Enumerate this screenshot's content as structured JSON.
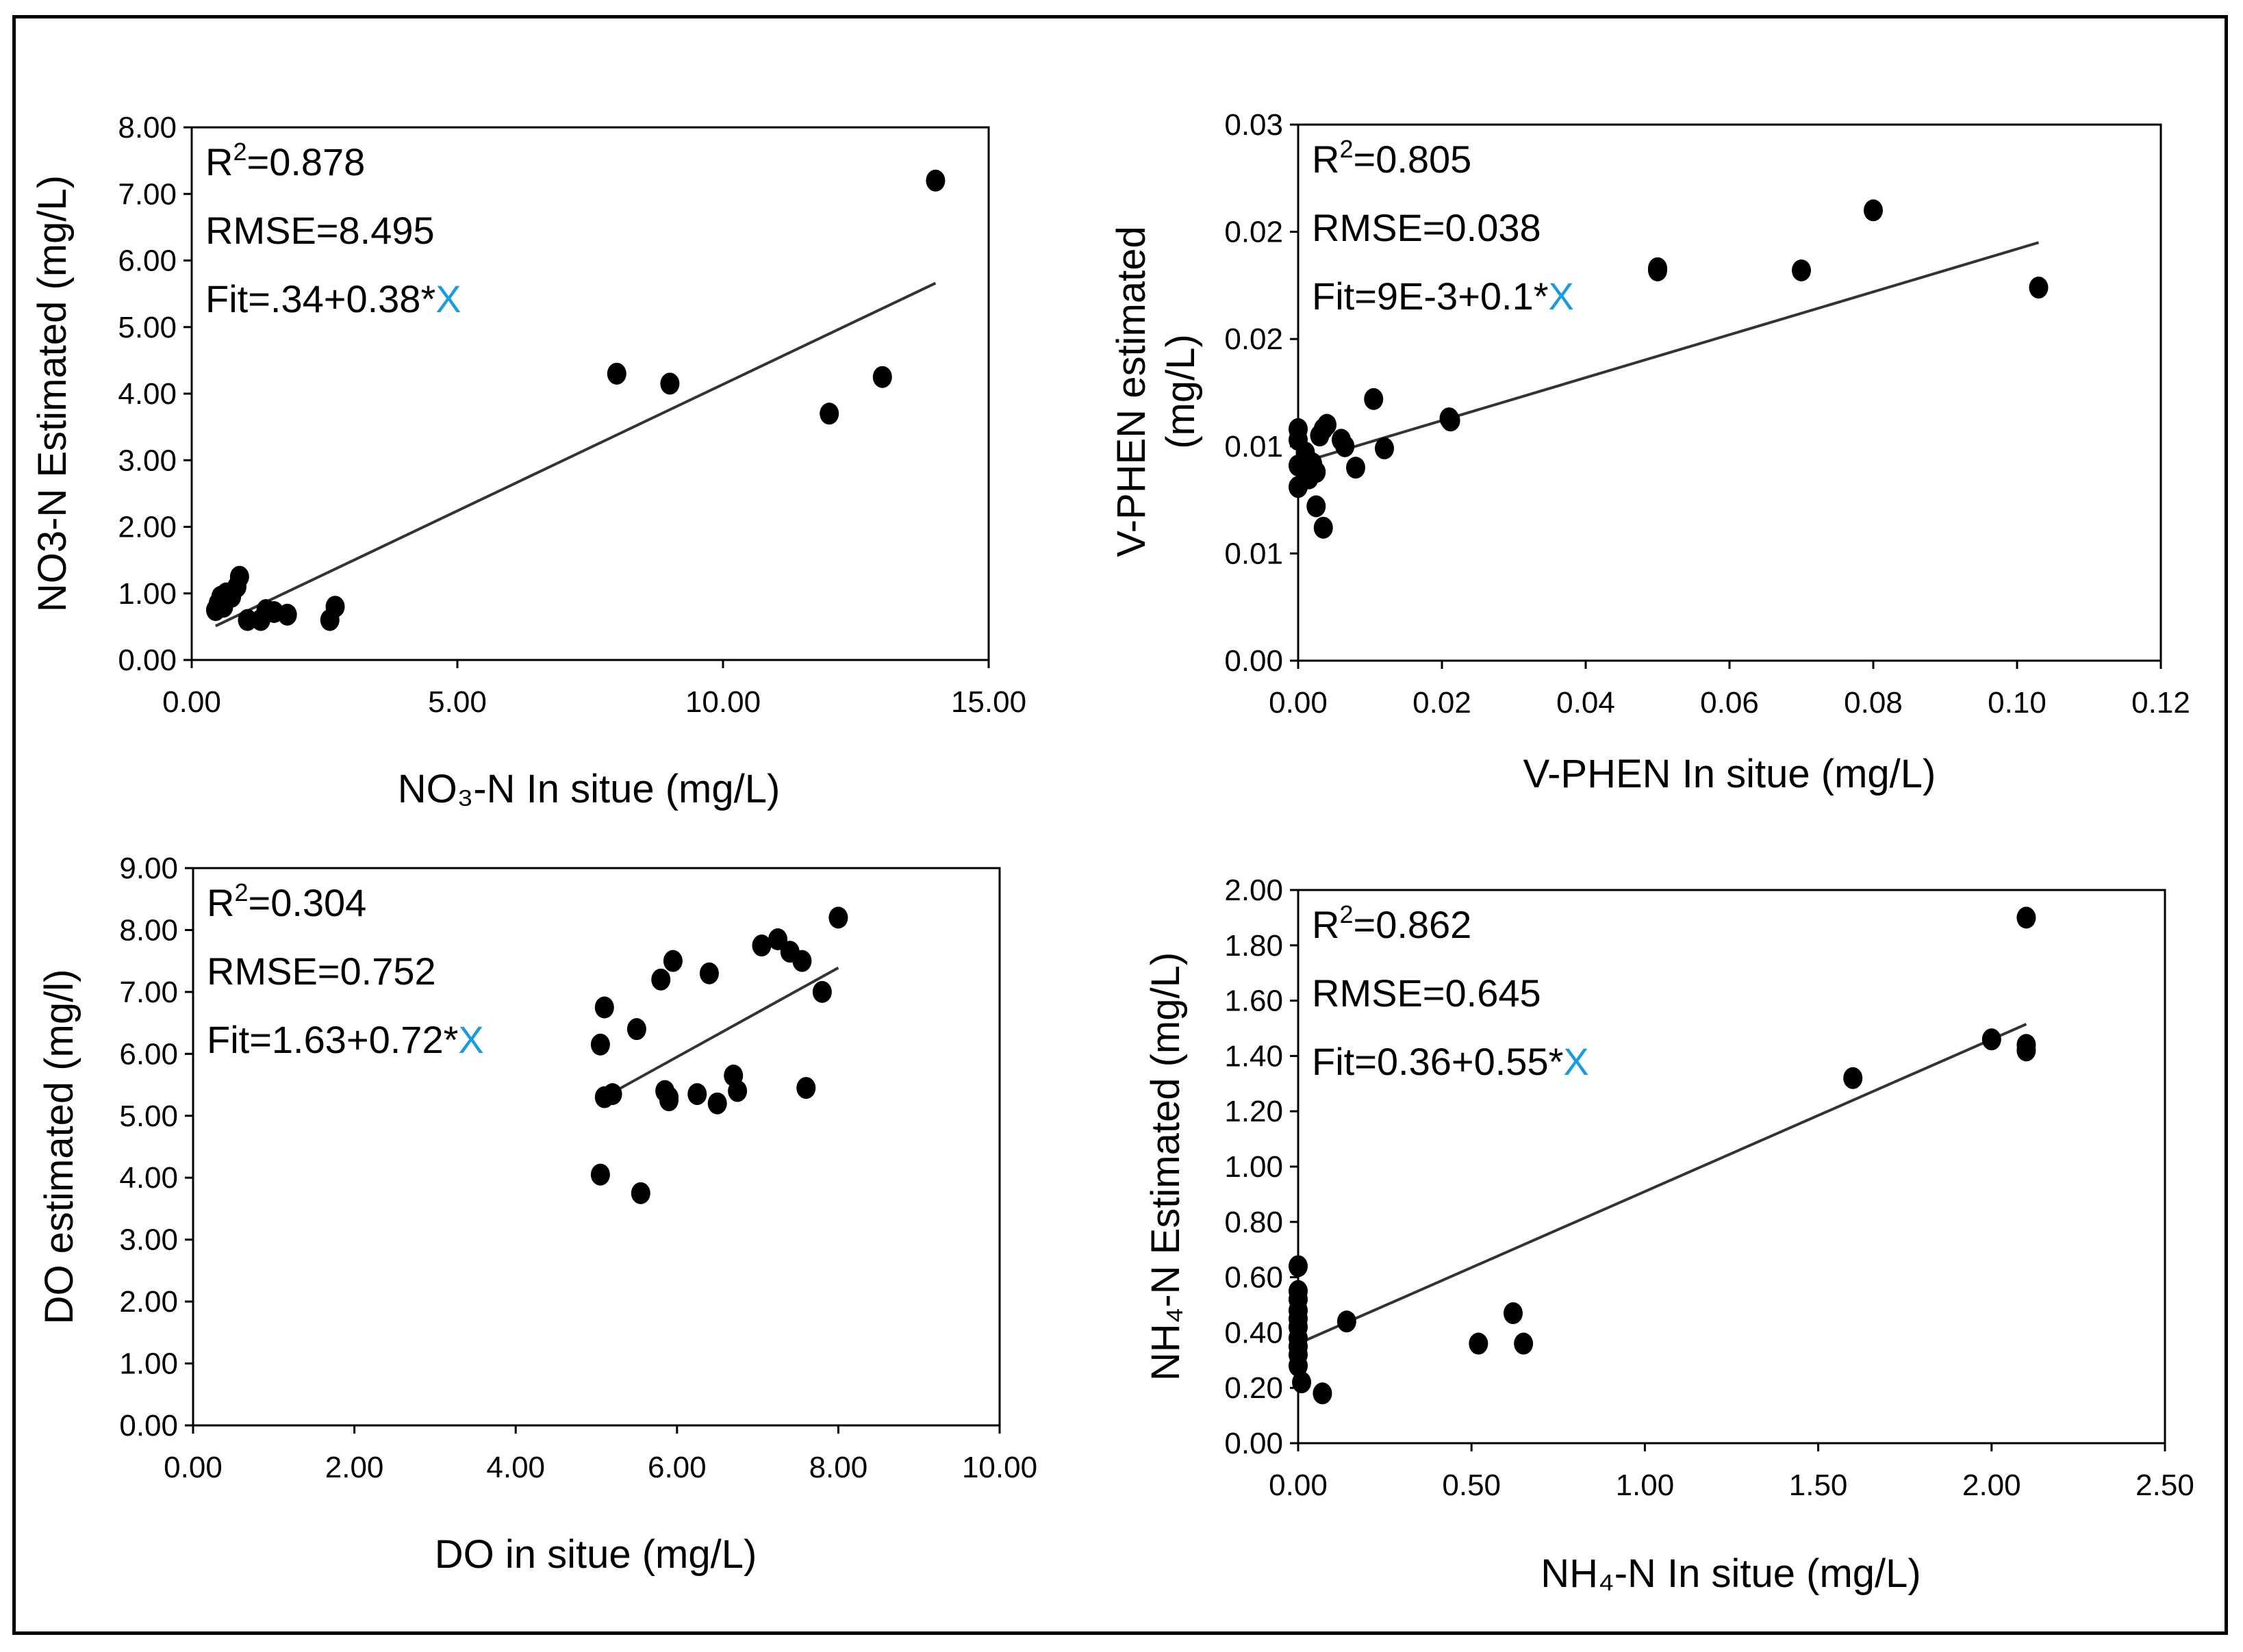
{
  "chart_data": [
    {
      "type": "scatter",
      "id": "no3",
      "ylabel": "NO3-N Estimated  (mg/L)",
      "xlabel": "NO₃-N In situe (mg/L)",
      "xlim": [
        0,
        15
      ],
      "ylim": [
        0,
        8
      ],
      "xticks": [
        0,
        5,
        10,
        15
      ],
      "xtick_labels": [
        "0.00",
        "5.00",
        "10.00",
        "15.00"
      ],
      "yticks": [
        0,
        1,
        2,
        3,
        4,
        5,
        6,
        7,
        8
      ],
      "ytick_labels": [
        "0.00",
        "1.00",
        "2.00",
        "3.00",
        "4.00",
        "5.00",
        "6.00",
        "7.00",
        "8.00"
      ],
      "r2_prefix": "R",
      "r2_sup": "2",
      "r2_value": "=0.878",
      "rmse": "RMSE=8.495",
      "fit_prefix": "Fit=.34+0.38*",
      "fit_x": "X",
      "fit_line": {
        "intercept": 0.34,
        "slope": 0.38,
        "x_from": 0.45,
        "x_to": 14
      },
      "points": [
        [
          0.45,
          0.75
        ],
        [
          0.5,
          0.85
        ],
        [
          0.55,
          0.95
        ],
        [
          0.6,
          0.8
        ],
        [
          0.65,
          1.0
        ],
        [
          0.75,
          0.95
        ],
        [
          0.85,
          1.1
        ],
        [
          0.9,
          1.25
        ],
        [
          1.05,
          0.6
        ],
        [
          1.3,
          0.6
        ],
        [
          1.4,
          0.75
        ],
        [
          1.55,
          0.72
        ],
        [
          1.8,
          0.68
        ],
        [
          2.6,
          0.6
        ],
        [
          2.7,
          0.8
        ],
        [
          8.0,
          4.3
        ],
        [
          9.0,
          4.15
        ],
        [
          12.0,
          3.7
        ],
        [
          13.0,
          4.25
        ],
        [
          14.0,
          7.2
        ]
      ]
    },
    {
      "type": "scatter",
      "id": "vphen",
      "ylabel": "V-PHEN estimated",
      "ylabel2": "(mg/L)",
      "xlabel": "V-PHEN In situe (mg/L)",
      "xlim": [
        0,
        0.12
      ],
      "ylim": [
        0,
        0.025
      ],
      "xticks": [
        0,
        0.02,
        0.04,
        0.06,
        0.08,
        0.1,
        0.12
      ],
      "xtick_labels": [
        "0.00",
        "0.02",
        "0.04",
        "0.06",
        "0.08",
        "0.10",
        "0.12"
      ],
      "yticks": [
        0,
        0.005,
        0.01,
        0.015,
        0.02,
        0.025
      ],
      "ytick_labels": [
        "0.00",
        "0.01",
        "0.01",
        "0.02",
        "0.02",
        "0.03"
      ],
      "r2_prefix": "R",
      "r2_sup": "2",
      "r2_value": "=0.805",
      "rmse": "RMSE=0.038",
      "fit_prefix": "Fit=9E-3+0.1*",
      "fit_x": "X",
      "fit_line": {
        "intercept": 0.0092,
        "slope": 0.1,
        "x_from": 0.0,
        "x_to": 0.103
      },
      "points": [
        [
          0.0,
          0.0108
        ],
        [
          0.0,
          0.0103
        ],
        [
          0.0,
          0.0091
        ],
        [
          0.0,
          0.0081
        ],
        [
          0.001,
          0.0097
        ],
        [
          0.001,
          0.009
        ],
        [
          0.0015,
          0.0085
        ],
        [
          0.002,
          0.0092
        ],
        [
          0.0025,
          0.0088
        ],
        [
          0.003,
          0.0105
        ],
        [
          0.0035,
          0.0108
        ],
        [
          0.004,
          0.011
        ],
        [
          0.0025,
          0.0072
        ],
        [
          0.0035,
          0.0062
        ],
        [
          0.006,
          0.0103
        ],
        [
          0.0065,
          0.01
        ],
        [
          0.008,
          0.009
        ],
        [
          0.0105,
          0.0122
        ],
        [
          0.012,
          0.0099
        ],
        [
          0.021,
          0.0113
        ],
        [
          0.0212,
          0.0112
        ],
        [
          0.05,
          0.0183
        ],
        [
          0.05,
          0.0182
        ],
        [
          0.07,
          0.0182
        ],
        [
          0.08,
          0.021
        ],
        [
          0.103,
          0.0174
        ]
      ]
    },
    {
      "type": "scatter",
      "id": "do",
      "ylabel": "DO estimated  (mg/l)",
      "xlabel": "DO in situe (mg/L)",
      "xlim": [
        0,
        10
      ],
      "ylim": [
        0,
        9
      ],
      "xticks": [
        0,
        2,
        4,
        6,
        8,
        10
      ],
      "xtick_labels": [
        "0.00",
        "2.00",
        "4.00",
        "6.00",
        "8.00",
        "10.00"
      ],
      "yticks": [
        0,
        1,
        2,
        3,
        4,
        5,
        6,
        7,
        8,
        9
      ],
      "ytick_labels": [
        "0.00",
        "1.00",
        "2.00",
        "3.00",
        "4.00",
        "5.00",
        "6.00",
        "7.00",
        "8.00",
        "9.00"
      ],
      "r2_prefix": "R",
      "r2_sup": "2",
      "r2_value": "=0.304",
      "rmse": "RMSE=0.752",
      "fit_prefix": "Fit=1.63+0.72*",
      "fit_x": "X",
      "fit_line": {
        "intercept": 1.63,
        "slope": 0.72,
        "x_from": 5.1,
        "x_to": 8.0
      },
      "points": [
        [
          5.05,
          4.05
        ],
        [
          5.05,
          6.15
        ],
        [
          5.1,
          6.75
        ],
        [
          5.1,
          5.3
        ],
        [
          5.2,
          5.35
        ],
        [
          5.5,
          6.4
        ],
        [
          5.55,
          3.75
        ],
        [
          5.8,
          7.2
        ],
        [
          5.85,
          5.4
        ],
        [
          5.9,
          5.3
        ],
        [
          5.9,
          5.25
        ],
        [
          5.95,
          7.5
        ],
        [
          6.25,
          5.35
        ],
        [
          6.4,
          7.3
        ],
        [
          6.5,
          5.2
        ],
        [
          6.7,
          5.65
        ],
        [
          6.75,
          5.4
        ],
        [
          7.05,
          7.75
        ],
        [
          7.25,
          7.85
        ],
        [
          7.4,
          7.65
        ],
        [
          7.55,
          7.5
        ],
        [
          7.6,
          5.45
        ],
        [
          7.8,
          7.0
        ],
        [
          8.0,
          8.2
        ]
      ]
    },
    {
      "type": "scatter",
      "id": "nh4",
      "ylabel": "NH₄-N Estimated  (mg/L)",
      "xlabel": "NH₄-N In situe (mg/L)",
      "xlim": [
        0,
        2.5
      ],
      "ylim": [
        0,
        2
      ],
      "xticks": [
        0,
        0.5,
        1,
        1.5,
        2,
        2.5
      ],
      "xtick_labels": [
        "0.00",
        "0.50",
        "1.00",
        "1.50",
        "2.00",
        "2.50"
      ],
      "yticks": [
        0,
        0.2,
        0.4,
        0.6,
        0.8,
        1,
        1.2,
        1.4,
        1.6,
        1.8,
        2
      ],
      "ytick_labels": [
        "0.00",
        "0.20",
        "0.40",
        "0.60",
        "0.80",
        "1.00",
        "1.20",
        "1.40",
        "1.60",
        "1.80",
        "2.00"
      ],
      "r2_prefix": "R",
      "r2_sup": "2",
      "r2_value": "=0.862",
      "rmse": "RMSE=0.645",
      "fit_prefix": "Fit=0.36+0.55*",
      "fit_x": "X",
      "fit_line": {
        "intercept": 0.36,
        "slope": 0.55,
        "x_from": 0.0,
        "x_to": 2.1
      },
      "points": [
        [
          0.0,
          0.64
        ],
        [
          0.0,
          0.55
        ],
        [
          0.0,
          0.52
        ],
        [
          0.0,
          0.48
        ],
        [
          0.0,
          0.45
        ],
        [
          0.0,
          0.42
        ],
        [
          0.0,
          0.38
        ],
        [
          0.0,
          0.35
        ],
        [
          0.0,
          0.32
        ],
        [
          0.0,
          0.28
        ],
        [
          0.01,
          0.22
        ],
        [
          0.07,
          0.18
        ],
        [
          0.14,
          0.44
        ],
        [
          0.52,
          0.36
        ],
        [
          0.62,
          0.47
        ],
        [
          0.65,
          0.36
        ],
        [
          1.6,
          1.32
        ],
        [
          2.0,
          1.46
        ],
        [
          2.1,
          1.9
        ],
        [
          2.1,
          1.42
        ],
        [
          2.1,
          1.44
        ]
      ]
    }
  ]
}
